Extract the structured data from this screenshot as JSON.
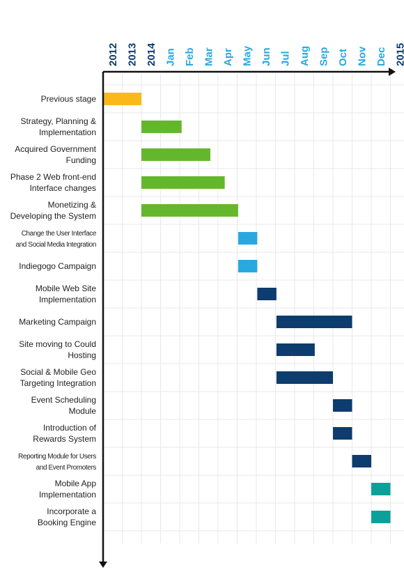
{
  "chart_data": {
    "type": "bar",
    "subtype": "gantt",
    "title": "",
    "xlabel": "",
    "ylabel": "",
    "grid": true,
    "timeline": [
      {
        "label": "2012",
        "color": "#0d3c6e"
      },
      {
        "label": "2013",
        "color": "#0d3c6e"
      },
      {
        "label": "2014",
        "color": "#0d3c6e"
      },
      {
        "label": "Jan",
        "color": "#29a8e0"
      },
      {
        "label": "Feb",
        "color": "#29a8e0"
      },
      {
        "label": "Mar",
        "color": "#29a8e0"
      },
      {
        "label": "Apr",
        "color": "#29a8e0"
      },
      {
        "label": "May",
        "color": "#29a8e0"
      },
      {
        "label": "Jun",
        "color": "#29a8e0"
      },
      {
        "label": "Jul",
        "color": "#29a8e0"
      },
      {
        "label": "Aug",
        "color": "#29a8e0"
      },
      {
        "label": "Sep",
        "color": "#29a8e0"
      },
      {
        "label": "Oct",
        "color": "#29a8e0"
      },
      {
        "label": "Nov",
        "color": "#29a8e0"
      },
      {
        "label": "Dec",
        "color": "#29a8e0"
      },
      {
        "label": "2015",
        "color": "#0d3c6e"
      }
    ],
    "tasks": [
      {
        "label": [
          "Previous stage"
        ],
        "start": 0,
        "end": 2,
        "color": "#fbb81b"
      },
      {
        "label": [
          "Strategy, Planning &",
          "Implementation"
        ],
        "start": 2,
        "end": 4.1,
        "color": "#64b72d"
      },
      {
        "label": [
          "Acquired Government",
          "Funding"
        ],
        "start": 2,
        "end": 5.6,
        "color": "#64b72d"
      },
      {
        "label": [
          "Phase 2 Web front-end",
          "Interface changes"
        ],
        "start": 2,
        "end": 6.35,
        "color": "#64b72d"
      },
      {
        "label": [
          "Monetizing &",
          "Developing the System"
        ],
        "start": 2,
        "end": 7.05,
        "color": "#64b72d"
      },
      {
        "label": [
          "Change the User Interface",
          "and Social Media Integration"
        ],
        "start": 7.05,
        "end": 8.05,
        "color": "#29a8e0",
        "condensed": true
      },
      {
        "label": [
          "Indiegogo Campaign"
        ],
        "start": 7.05,
        "end": 8.05,
        "color": "#29a8e0"
      },
      {
        "label": [
          "Mobile Web Site",
          "Implementation"
        ],
        "start": 8.05,
        "end": 9.05,
        "color": "#0d3c6e"
      },
      {
        "label": [
          "Marketing Campaign"
        ],
        "start": 9.05,
        "end": 13,
        "color": "#0d3c6e"
      },
      {
        "label": [
          "Site moving to Could",
          "Hosting"
        ],
        "start": 9.05,
        "end": 11.05,
        "color": "#0d3c6e"
      },
      {
        "label": [
          "Social & Mobile Geo",
          "Targeting Integration"
        ],
        "start": 9.05,
        "end": 12,
        "color": "#0d3c6e"
      },
      {
        "label": [
          "Event Scheduling",
          "Module"
        ],
        "start": 12,
        "end": 13,
        "color": "#0d3c6e"
      },
      {
        "label": [
          "Introduction of",
          "Rewards System"
        ],
        "start": 12,
        "end": 13,
        "color": "#0d3c6e"
      },
      {
        "label": [
          "Reporting Module for Users",
          "and Event Promoters"
        ],
        "start": 13,
        "end": 14,
        "color": "#0d3c6e",
        "condensed": true
      },
      {
        "label": [
          "Mobile App",
          "Implementation"
        ],
        "start": 14,
        "end": 15,
        "color": "#0aa19b"
      },
      {
        "label": [
          "Incorporate a",
          "Booking Engine"
        ],
        "start": 14,
        "end": 15,
        "color": "#0aa19b"
      }
    ]
  }
}
